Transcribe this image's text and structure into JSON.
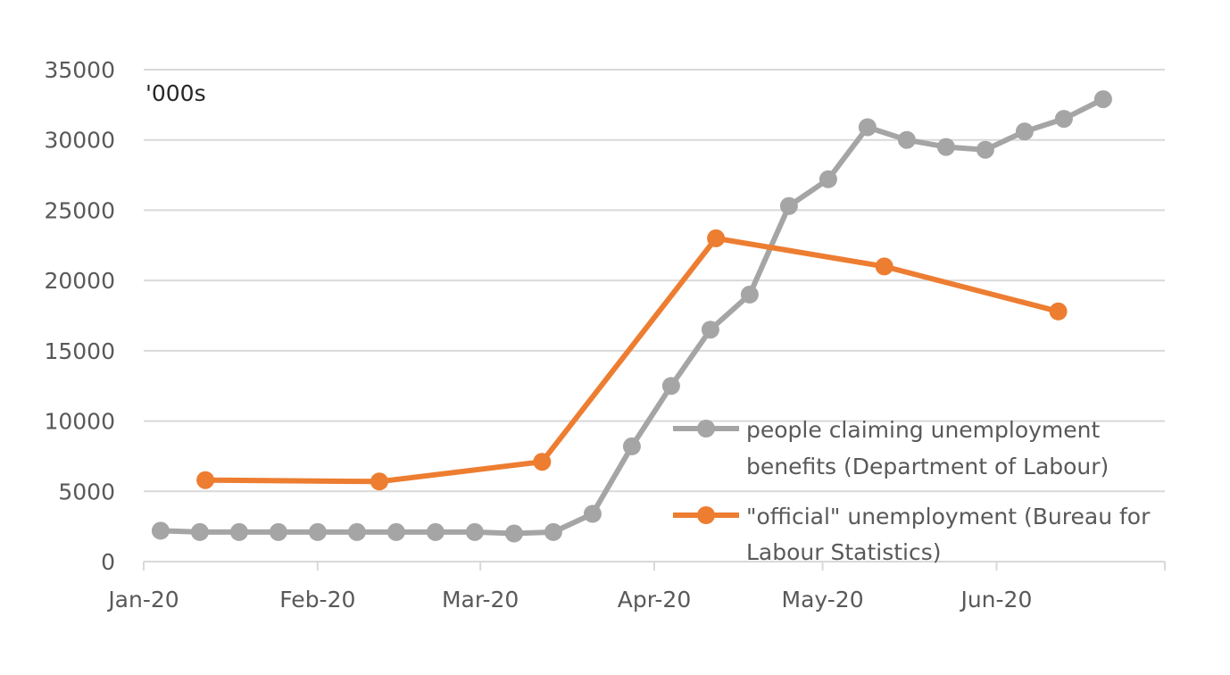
{
  "chart_data": {
    "type": "line",
    "unit_label": "'000s",
    "ylim": [
      0,
      35000
    ],
    "y_ticks": [
      0,
      5000,
      10000,
      15000,
      20000,
      25000,
      30000,
      35000
    ],
    "x_ticks": [
      {
        "date": "2020-01-01",
        "label": "Jan-20"
      },
      {
        "date": "2020-02-01",
        "label": "Feb-20"
      },
      {
        "date": "2020-03-01",
        "label": "Mar-20"
      },
      {
        "date": "2020-04-01",
        "label": "Apr-20"
      },
      {
        "date": "2020-05-01",
        "label": "May-20"
      },
      {
        "date": "2020-06-01",
        "label": "Jun-20"
      }
    ],
    "xlim": [
      "2020-01-01",
      "2020-07-01"
    ],
    "grid": true,
    "legend_position": "bottom-right",
    "series": [
      {
        "name": "people claiming unemployment benefits (Department of Labour)",
        "color": "#a5a5a5",
        "points": [
          {
            "x": "2020-01-04",
            "y": 2200
          },
          {
            "x": "2020-01-11",
            "y": 2100
          },
          {
            "x": "2020-01-18",
            "y": 2100
          },
          {
            "x": "2020-01-25",
            "y": 2100
          },
          {
            "x": "2020-02-01",
            "y": 2100
          },
          {
            "x": "2020-02-08",
            "y": 2100
          },
          {
            "x": "2020-02-15",
            "y": 2100
          },
          {
            "x": "2020-02-22",
            "y": 2100
          },
          {
            "x": "2020-02-29",
            "y": 2100
          },
          {
            "x": "2020-03-07",
            "y": 2000
          },
          {
            "x": "2020-03-14",
            "y": 2100
          },
          {
            "x": "2020-03-21",
            "y": 3400
          },
          {
            "x": "2020-03-28",
            "y": 8200
          },
          {
            "x": "2020-04-04",
            "y": 12500
          },
          {
            "x": "2020-04-11",
            "y": 16500
          },
          {
            "x": "2020-04-18",
            "y": 19000
          },
          {
            "x": "2020-04-25",
            "y": 25300
          },
          {
            "x": "2020-05-02",
            "y": 27200
          },
          {
            "x": "2020-05-09",
            "y": 30900
          },
          {
            "x": "2020-05-16",
            "y": 30000
          },
          {
            "x": "2020-05-23",
            "y": 29500
          },
          {
            "x": "2020-05-30",
            "y": 29300
          },
          {
            "x": "2020-06-06",
            "y": 30600
          },
          {
            "x": "2020-06-13",
            "y": 31500
          },
          {
            "x": "2020-06-20",
            "y": 32900
          }
        ]
      },
      {
        "name": "\"official\" unemployment (Bureau for Labour Statistics)",
        "color": "#ed7d31",
        "points": [
          {
            "x": "2020-01-12",
            "y": 5800
          },
          {
            "x": "2020-02-12",
            "y": 5700
          },
          {
            "x": "2020-03-12",
            "y": 7100
          },
          {
            "x": "2020-04-12",
            "y": 23000
          },
          {
            "x": "2020-05-12",
            "y": 21000
          },
          {
            "x": "2020-06-12",
            "y": 17800
          }
        ]
      }
    ]
  },
  "legend": [
    {
      "line1": "people claiming unemployment",
      "line2": "benefits (Department of Labour)"
    },
    {
      "line1": "\"official\" unemployment (Bureau for",
      "line2": "Labour Statistics)"
    }
  ]
}
